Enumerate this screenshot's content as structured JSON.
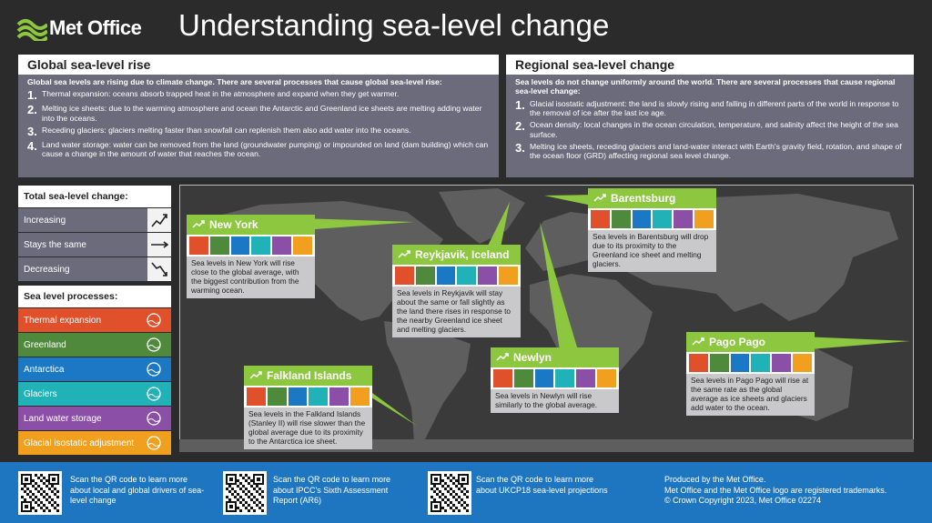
{
  "header": {
    "logo": "Met Office",
    "title": "Understanding sea-level change"
  },
  "global": {
    "title": "Global sea-level rise",
    "intro": "Global sea levels are rising due to climate change. There are several processes that cause global sea-level rise:",
    "items": [
      {
        "number": "1.",
        "text": "Thermal expansion: oceans absorb trapped heat in the atmosphere and expand when they get warmer."
      },
      {
        "number": "2.",
        "text": "Melting ice sheets: due to the warming atmosphere and ocean the Antarctic and Greenland ice sheets are melting adding water into the oceans."
      },
      {
        "number": "3.",
        "text": "Receding glaciers: glaciers melting faster than snowfall can replenish them also add water into the oceans."
      },
      {
        "number": "4.",
        "text": "Land water storage: water can be removed from the land (groundwater pumping) or impounded on land (dam building) which can cause a change in the amount of water that reaches the ocean."
      }
    ]
  },
  "regional": {
    "title": "Regional sea-level change",
    "intro": "Sea levels do not change uniformly around the world. There are several processes that cause regional sea-level change:",
    "items": [
      {
        "number": "1.",
        "text": "Glacial isostatic adjustment: the land is slowly rising and falling in different parts of the world in response to the removal of ice after the last ice age."
      },
      {
        "number": "2.",
        "text": "Ocean density: local changes in the ocean circulation, temperature, and salinity affect the height of the sea surface."
      },
      {
        "number": "3.",
        "text": "Melting ice sheets, receding glaciers and land-water interact with Earth's gravity field, rotation, and shape of the ocean floor (GRD) affecting regional sea level change."
      }
    ]
  },
  "total_change": {
    "title": "Total sea-level change:",
    "items": [
      "Increasing",
      "Stays the same",
      "Decreasing"
    ]
  },
  "processes": {
    "title": "Sea level processes:",
    "items": [
      "Thermal expansion",
      "Greenland",
      "Antarctica",
      "Glaciers",
      "Land water storage",
      "Glacial isostatic adjustment"
    ]
  },
  "locations": [
    {
      "name": "New York",
      "text": "Sea levels in New York will rise close to the global average, with the biggest contribution from the warming ocean."
    },
    {
      "name": "Reykjavik, Iceland",
      "text": "Sea levels in Reykjavik will stay about the same or fall slightly as the land there rises in response to the nearby Greenland ice sheet and melting glaciers."
    },
    {
      "name": "Barentsburg",
      "text": "Sea levels in Barentsburg will drop due to its proximity to the Greenland ice sheet and melting glaciers."
    },
    {
      "name": "Newlyn",
      "text": "Sea levels in Newlyn will rise similarly to the global average."
    },
    {
      "name": "Pago Pago",
      "text": "Sea levels in Pago Pago will rise at the same rate as the global average as ice sheets and glaciers add water to the ocean."
    },
    {
      "name": "Falkland Islands",
      "text": "Sea levels in the Falkland Islands (Stanley II) will rise slower than the global average due to its proximity to the Antarctica ice sheet."
    }
  ],
  "footer": {
    "qr": [
      "Scan the QR code to learn more about local and global drivers of sea-level change",
      "Scan the QR code to learn more about IPCC's Sixth Assessment Report (AR6)",
      "Scan the QR code to learn more about UKCP18 sea-level projections"
    ],
    "credits": [
      "Produced by the Met Office.",
      "Met Office and the Met Office logo are registered trademarks.",
      "© Crown Copyright 2023, Met Office 02274"
    ]
  }
}
